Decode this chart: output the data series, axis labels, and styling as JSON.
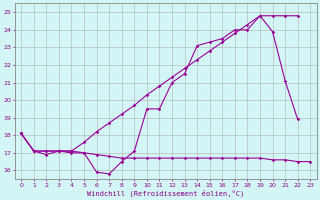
{
  "xlabel": "Windchill (Refroidissement éolien,°C)",
  "bg_color": "#d4f5f5",
  "grid_color": "#b0b0b0",
  "line_color": "#990099",
  "xlim": [
    -0.5,
    23.5
  ],
  "ylim": [
    15.5,
    25.5
  ],
  "yticks": [
    16,
    17,
    18,
    19,
    20,
    21,
    22,
    23,
    24,
    25
  ],
  "xticks": [
    0,
    1,
    2,
    3,
    4,
    5,
    6,
    7,
    8,
    9,
    10,
    11,
    12,
    13,
    14,
    15,
    16,
    17,
    18,
    19,
    20,
    21,
    22,
    23
  ],
  "line1_x": [
    0,
    1,
    2,
    3,
    4,
    5,
    6,
    7,
    8,
    9,
    10,
    11,
    12,
    13,
    14,
    15,
    16,
    17,
    18,
    19,
    20,
    21,
    22
  ],
  "line1_y": [
    18.1,
    17.1,
    16.9,
    17.1,
    17.1,
    17.0,
    15.9,
    15.8,
    16.5,
    17.1,
    19.5,
    19.5,
    21.0,
    21.5,
    23.1,
    23.3,
    23.5,
    24.0,
    24.0,
    24.8,
    23.9,
    21.1,
    18.9
  ],
  "line2_x": [
    0,
    1,
    2,
    3,
    4,
    5,
    6,
    7,
    8,
    9,
    10,
    11,
    12,
    13,
    14,
    15,
    16,
    17,
    18,
    19,
    20,
    21,
    22
  ],
  "line2_y": [
    18.1,
    17.1,
    17.1,
    17.1,
    17.1,
    17.6,
    18.2,
    18.7,
    19.2,
    19.7,
    20.3,
    20.8,
    21.3,
    21.8,
    22.3,
    22.8,
    23.3,
    23.8,
    24.3,
    24.8,
    24.8,
    24.8,
    24.8
  ],
  "line3_x": [
    0,
    1,
    2,
    3,
    4,
    5,
    6,
    7,
    8,
    9,
    10,
    11,
    12,
    13,
    14,
    15,
    16,
    17,
    18,
    19,
    20,
    21,
    22,
    23
  ],
  "line3_y": [
    18.1,
    17.1,
    17.1,
    17.1,
    17.0,
    17.0,
    16.9,
    16.8,
    16.7,
    16.7,
    16.7,
    16.7,
    16.7,
    16.7,
    16.7,
    16.7,
    16.7,
    16.7,
    16.7,
    16.7,
    16.6,
    16.6,
    16.5,
    16.5
  ]
}
